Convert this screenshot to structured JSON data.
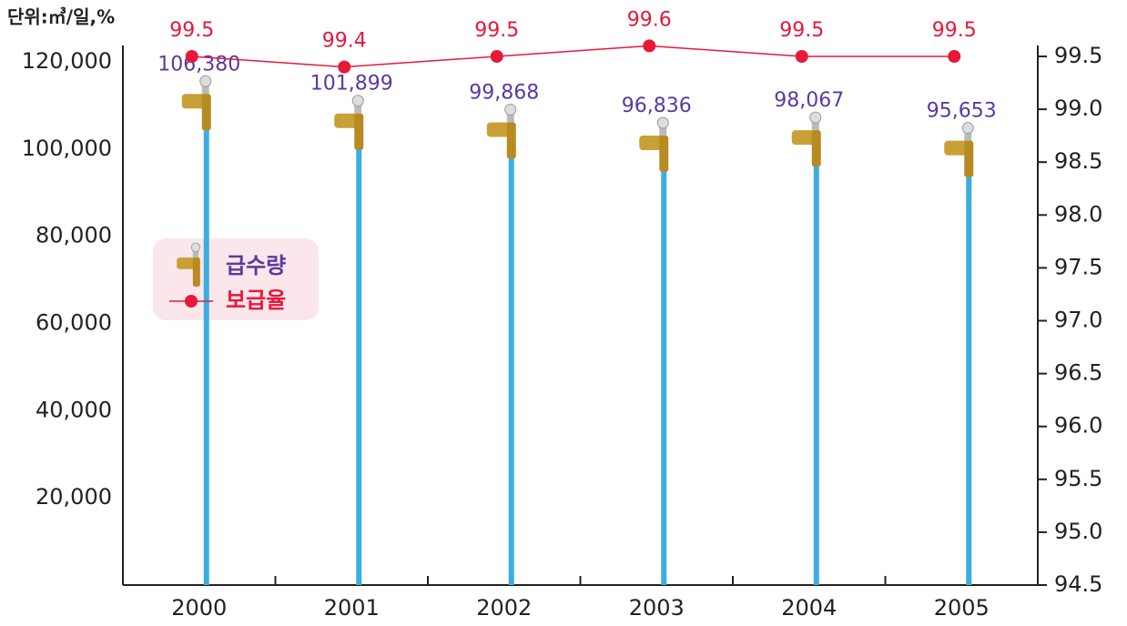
{
  "chart_data": {
    "type": "bar-line",
    "unit_label": "단위:㎥/일,%",
    "categories": [
      "2000",
      "2001",
      "2002",
      "2003",
      "2004",
      "2005"
    ],
    "series": [
      {
        "name": "급수량",
        "type": "bar",
        "color": "#3aaee0",
        "label_color": "#5a3aa0",
        "values": [
          106380,
          101899,
          99868,
          96836,
          98067,
          95653
        ],
        "value_labels": [
          "106,380",
          "101,899",
          "99,868",
          "96,836",
          "98,067",
          "95,653"
        ]
      },
      {
        "name": "보급율",
        "type": "line",
        "axis": "y2",
        "color": "#e8183a",
        "values": [
          99.5,
          99.4,
          99.5,
          99.6,
          99.5,
          99.5
        ]
      }
    ],
    "ylim": [
      0,
      120000
    ],
    "yticks": [
      {
        "value": 20000,
        "label": "20,000"
      },
      {
        "value": 40000,
        "label": "40,000"
      },
      {
        "value": 60000,
        "label": "60,000"
      },
      {
        "value": 80000,
        "label": "80,000"
      },
      {
        "value": 100000,
        "label": "100,000"
      },
      {
        "value": 120000,
        "label": "120,000"
      }
    ],
    "y2lim": [
      94.5,
      99.5
    ],
    "y2ticks": [
      94.5,
      {
        "value": 95,
        "label": "95.0"
      },
      95.5,
      {
        "value": 96,
        "label": "96.0"
      },
      96.5,
      {
        "value": 97,
        "label": "97.0"
      },
      97.5,
      {
        "value": 98,
        "label": "98.0"
      },
      98.5,
      {
        "value": 99,
        "label": "99.0"
      },
      99.5
    ],
    "legend": "upper left"
  }
}
